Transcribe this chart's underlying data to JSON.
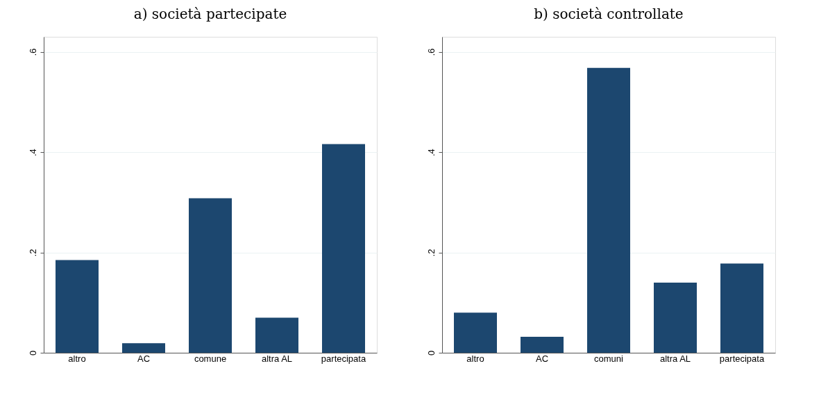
{
  "chart_data": [
    {
      "type": "bar",
      "title": "a) società partecipate",
      "categories": [
        "altro",
        "AC",
        "comune",
        "altra AL",
        "partecipata"
      ],
      "values": [
        0.185,
        0.019,
        0.308,
        0.07,
        0.416
      ],
      "color": "#1c476f",
      "ylim": [
        0,
        0.63
      ],
      "yticks": [
        0,
        {
          "value": 0.2,
          "label": ".2"
        },
        {
          "value": 0.4,
          "label": ".4"
        },
        {
          "value": 0.6,
          "label": ".6"
        }
      ],
      "grid": "y"
    },
    {
      "type": "bar",
      "title": "b) società controllate",
      "categories": [
        "altro",
        "AC",
        "comuni",
        "altra AL",
        "partecipata"
      ],
      "values": [
        0.08,
        0.032,
        0.568,
        0.14,
        0.178
      ],
      "color": "#1c476f",
      "ylim": [
        0,
        0.63
      ],
      "yticks": [
        0,
        {
          "value": 0.2,
          "label": ".2"
        },
        {
          "value": 0.4,
          "label": ".4"
        },
        {
          "value": 0.6,
          "label": ".6"
        }
      ],
      "grid": "y"
    }
  ]
}
